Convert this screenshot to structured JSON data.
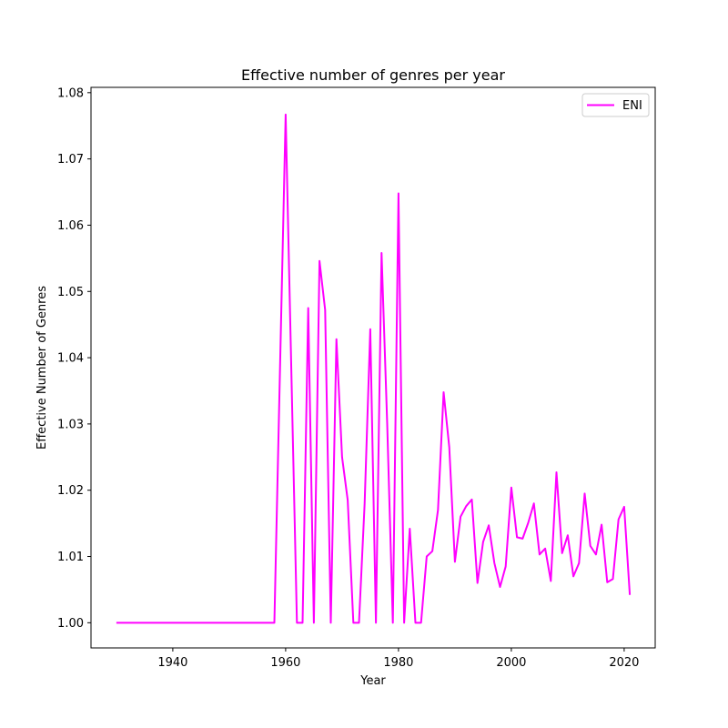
{
  "chart_data": {
    "type": "line",
    "title": "Effective number of genres per year",
    "xlabel": "Year",
    "ylabel": "Effective Number of Genres",
    "xlim": [
      1925.5,
      2025.5
    ],
    "ylim": [
      0.9962,
      1.0808
    ],
    "xticks": [
      1940,
      1960,
      1980,
      2000,
      2020
    ],
    "yticks": [
      "1.00",
      "1.01",
      "1.02",
      "1.03",
      "1.04",
      "1.05",
      "1.06",
      "1.07",
      "1.08"
    ],
    "grid": false,
    "legend": {
      "position": "top-right"
    },
    "series": [
      {
        "name": "ENI",
        "color": "#ff00ff",
        "x": [
          1930,
          1958,
          1960,
          1962,
          1963,
          1964,
          1965,
          1966,
          1967,
          1968,
          1969,
          1970,
          1971,
          1972,
          1973,
          1974,
          1975,
          1976,
          1977,
          1978,
          1979,
          1980,
          1981,
          1982,
          1983,
          1984,
          1985,
          1986,
          1987,
          1988,
          1989,
          1990,
          1991,
          1992,
          1993,
          1994,
          1995,
          1996,
          1997,
          1998,
          1999,
          2000,
          2001,
          2002,
          2003,
          2004,
          2005,
          2006,
          2007,
          2008,
          2009,
          2010,
          2011,
          2012,
          2013,
          2014,
          2015,
          2016,
          2017,
          2018,
          2019,
          2020,
          2021
        ],
        "y": [
          1.0,
          1.0,
          1.0767,
          1.0,
          1.0,
          1.0475,
          1.0,
          1.0546,
          1.0472,
          1.0,
          1.0428,
          1.025,
          1.0185,
          1.0,
          1.0,
          1.018,
          1.0443,
          1.0,
          1.0558,
          1.03,
          1.0,
          1.0648,
          1.0,
          1.0142,
          1.0,
          1.0,
          1.01,
          1.0108,
          1.017,
          1.0348,
          1.0265,
          1.0092,
          1.016,
          1.0176,
          1.0186,
          1.006,
          1.0122,
          1.0147,
          1.009,
          1.0054,
          1.0085,
          1.0204,
          1.0129,
          1.0127,
          1.0151,
          1.018,
          1.0103,
          1.0112,
          1.0063,
          1.0227,
          1.0105,
          1.0132,
          1.007,
          1.009,
          1.0195,
          1.0116,
          1.0103,
          1.0148,
          1.0061,
          1.0066,
          1.0156,
          1.0175,
          1.0042
        ]
      }
    ]
  }
}
